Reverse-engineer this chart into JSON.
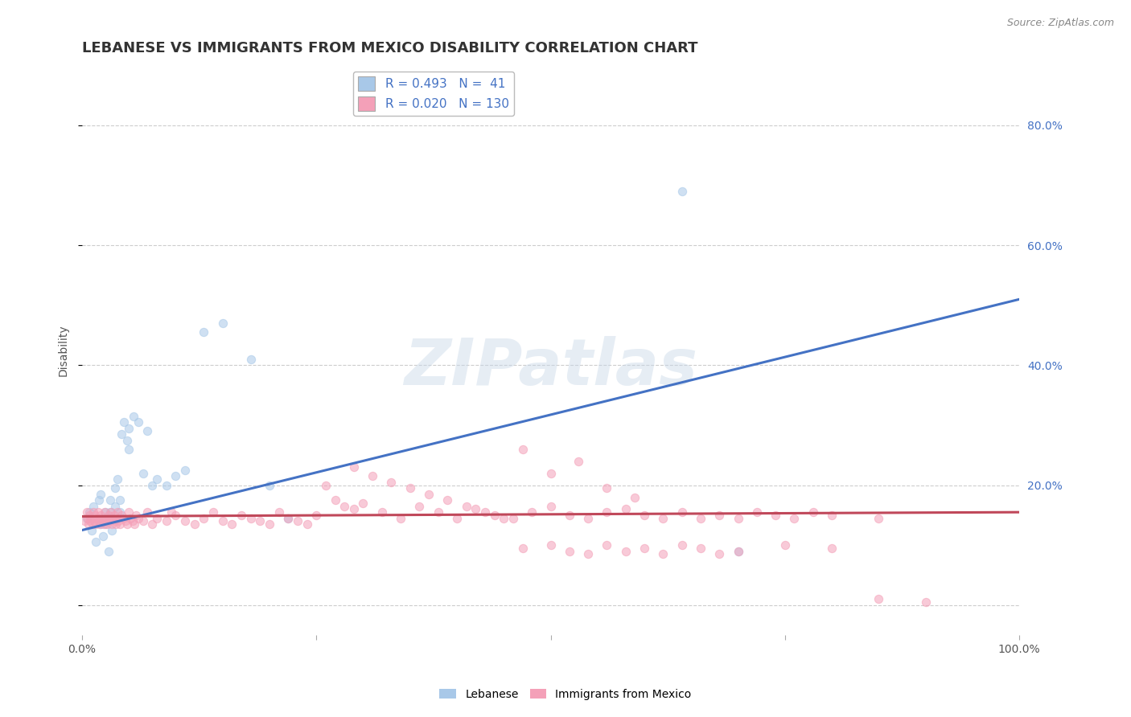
{
  "title": "LEBANESE VS IMMIGRANTS FROM MEXICO DISABILITY CORRELATION CHART",
  "source": "Source: ZipAtlas.com",
  "ylabel": "Disability",
  "xlim": [
    0,
    1.0
  ],
  "ylim": [
    -0.05,
    0.9
  ],
  "yticks": [
    0.0,
    0.2,
    0.4,
    0.6,
    0.8
  ],
  "ytick_labels": [
    "",
    "20.0%",
    "40.0%",
    "60.0%",
    "80.0%"
  ],
  "xticks": [
    0.0,
    0.25,
    0.5,
    0.75,
    1.0
  ],
  "xtick_labels": [
    "0.0%",
    "",
    "",
    "",
    "100.0%"
  ],
  "watermark": "ZIPatlas",
  "legend_r1": "R = 0.493",
  "legend_n1": "N =  41",
  "legend_r2": "R = 0.020",
  "legend_n2": "N = 130",
  "blue_scatter_color": "#a8c8e8",
  "pink_scatter_color": "#f4a0b8",
  "blue_line_color": "#4472c4",
  "pink_line_color": "#c0485a",
  "background_color": "#ffffff",
  "grid_color": "#c8c8c8",
  "right_tick_color": "#4472c4",
  "title_fontsize": 13,
  "label_fontsize": 10,
  "scatter_alpha": 0.55,
  "scatter_size": 55,
  "lebanese_x": [
    0.005,
    0.008,
    0.01,
    0.012,
    0.015,
    0.018,
    0.02,
    0.02,
    0.022,
    0.025,
    0.025,
    0.028,
    0.03,
    0.03,
    0.032,
    0.035,
    0.035,
    0.038,
    0.04,
    0.04,
    0.042,
    0.045,
    0.048,
    0.05,
    0.05,
    0.055,
    0.06,
    0.065,
    0.07,
    0.075,
    0.08,
    0.09,
    0.1,
    0.11,
    0.13,
    0.15,
    0.18,
    0.2,
    0.22,
    0.64,
    0.7
  ],
  "lebanese_y": [
    0.145,
    0.155,
    0.125,
    0.165,
    0.105,
    0.175,
    0.135,
    0.185,
    0.115,
    0.155,
    0.135,
    0.09,
    0.175,
    0.155,
    0.125,
    0.195,
    0.165,
    0.21,
    0.155,
    0.175,
    0.285,
    0.305,
    0.275,
    0.295,
    0.26,
    0.315,
    0.305,
    0.22,
    0.29,
    0.2,
    0.21,
    0.2,
    0.215,
    0.225,
    0.455,
    0.47,
    0.41,
    0.2,
    0.145,
    0.69,
    0.09
  ],
  "mexico_x": [
    0.003,
    0.005,
    0.006,
    0.007,
    0.008,
    0.009,
    0.01,
    0.011,
    0.012,
    0.013,
    0.014,
    0.015,
    0.016,
    0.017,
    0.018,
    0.019,
    0.02,
    0.021,
    0.022,
    0.023,
    0.024,
    0.025,
    0.026,
    0.027,
    0.028,
    0.029,
    0.03,
    0.031,
    0.032,
    0.033,
    0.034,
    0.035,
    0.036,
    0.037,
    0.038,
    0.039,
    0.04,
    0.042,
    0.044,
    0.046,
    0.048,
    0.05,
    0.052,
    0.054,
    0.056,
    0.058,
    0.06,
    0.065,
    0.07,
    0.075,
    0.08,
    0.09,
    0.095,
    0.1,
    0.11,
    0.12,
    0.13,
    0.14,
    0.15,
    0.16,
    0.17,
    0.18,
    0.19,
    0.2,
    0.21,
    0.22,
    0.23,
    0.24,
    0.25,
    0.26,
    0.27,
    0.28,
    0.29,
    0.3,
    0.32,
    0.34,
    0.36,
    0.38,
    0.4,
    0.42,
    0.44,
    0.46,
    0.48,
    0.5,
    0.52,
    0.54,
    0.56,
    0.58,
    0.6,
    0.62,
    0.64,
    0.66,
    0.68,
    0.7,
    0.72,
    0.74,
    0.76,
    0.78,
    0.8,
    0.85,
    0.47,
    0.5,
    0.53,
    0.56,
    0.59,
    0.29,
    0.31,
    0.33,
    0.35,
    0.37,
    0.39,
    0.41,
    0.43,
    0.45,
    0.47,
    0.5,
    0.52,
    0.54,
    0.56,
    0.58,
    0.6,
    0.62,
    0.64,
    0.66,
    0.68,
    0.7,
    0.75,
    0.8,
    0.85,
    0.9
  ],
  "mexico_y": [
    0.14,
    0.155,
    0.145,
    0.135,
    0.15,
    0.14,
    0.145,
    0.135,
    0.155,
    0.14,
    0.15,
    0.135,
    0.145,
    0.155,
    0.14,
    0.135,
    0.15,
    0.145,
    0.14,
    0.135,
    0.155,
    0.145,
    0.14,
    0.135,
    0.15,
    0.145,
    0.14,
    0.155,
    0.135,
    0.145,
    0.15,
    0.14,
    0.135,
    0.145,
    0.155,
    0.14,
    0.135,
    0.15,
    0.145,
    0.14,
    0.135,
    0.155,
    0.145,
    0.14,
    0.135,
    0.15,
    0.145,
    0.14,
    0.155,
    0.135,
    0.145,
    0.14,
    0.155,
    0.15,
    0.14,
    0.135,
    0.145,
    0.155,
    0.14,
    0.135,
    0.15,
    0.145,
    0.14,
    0.135,
    0.155,
    0.145,
    0.14,
    0.135,
    0.15,
    0.2,
    0.175,
    0.165,
    0.16,
    0.17,
    0.155,
    0.145,
    0.165,
    0.155,
    0.145,
    0.16,
    0.15,
    0.145,
    0.155,
    0.165,
    0.15,
    0.145,
    0.155,
    0.16,
    0.15,
    0.145,
    0.155,
    0.145,
    0.15,
    0.145,
    0.155,
    0.15,
    0.145,
    0.155,
    0.15,
    0.145,
    0.26,
    0.22,
    0.24,
    0.195,
    0.18,
    0.23,
    0.215,
    0.205,
    0.195,
    0.185,
    0.175,
    0.165,
    0.155,
    0.145,
    0.095,
    0.1,
    0.09,
    0.085,
    0.1,
    0.09,
    0.095,
    0.085,
    0.1,
    0.095,
    0.085,
    0.09,
    0.1,
    0.095,
    0.01,
    0.005
  ],
  "blue_line_x0": 0.0,
  "blue_line_y0": 0.125,
  "blue_line_x1": 1.0,
  "blue_line_y1": 0.51,
  "pink_line_x0": 0.0,
  "pink_line_y0": 0.148,
  "pink_line_x1": 1.0,
  "pink_line_y1": 0.155
}
